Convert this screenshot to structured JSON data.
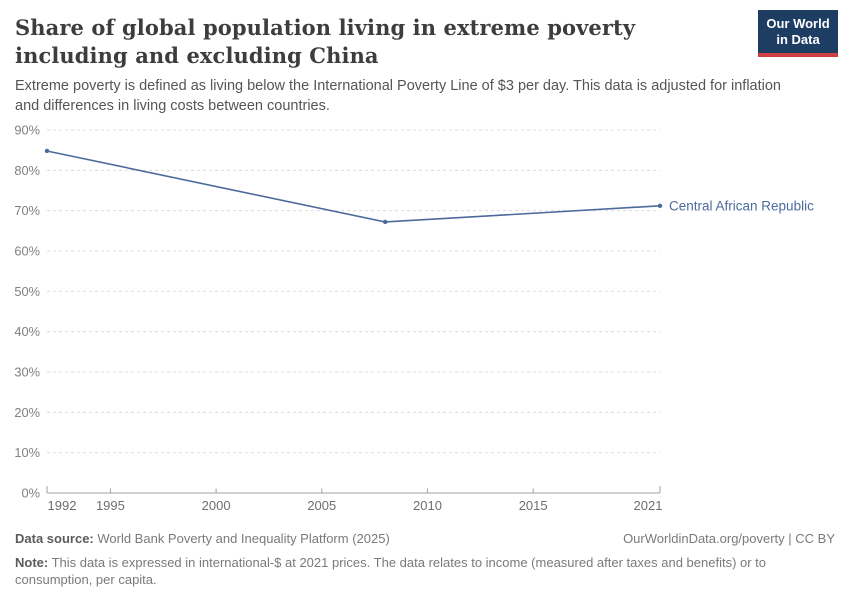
{
  "header": {
    "title": "Share of global population living in extreme poverty including and excluding China",
    "subtitle": "Extreme poverty is defined as living below the International Poverty Line of $3 per day. This data is adjusted for inflation and differences in living costs between countries.",
    "logo": {
      "line1": "Our World",
      "line2": "in Data",
      "bg_color": "#1d3d63",
      "accent_color": "#cf3e41"
    }
  },
  "chart_data": {
    "type": "line",
    "series": [
      {
        "name": "Central African Republic",
        "color": "#4c6a9c",
        "x": [
          1992,
          2008,
          2021
        ],
        "values": [
          84.8,
          67.2,
          71.2
        ]
      }
    ],
    "title": "Share of global population living in extreme poverty including and excluding China",
    "xlabel": "",
    "ylabel": "",
    "xlim": [
      1992,
      2021
    ],
    "ylim": [
      0,
      90
    ],
    "x_ticks": [
      1992,
      1995,
      2000,
      2005,
      2010,
      2015,
      2021
    ],
    "y_ticks": [
      0,
      10,
      20,
      30,
      40,
      50,
      60,
      70,
      80,
      90
    ],
    "y_tick_suffix": "%",
    "grid": "horizontal-dashed",
    "legend_position": "end-of-line-label",
    "colors": {
      "gridline": "#dcdcdc",
      "axis": "#a3a3a3",
      "y_tick_text": "#808080",
      "x_tick_text": "#6e6e6e"
    }
  },
  "footer": {
    "datasource_label": "Data source:",
    "datasource_value": " World Bank Poverty and Inequality Platform (2025)",
    "license": "OurWorldinData.org/poverty | CC BY",
    "note_label": "Note:",
    "note_value": " This data is expressed in international-$ at 2021 prices. The data relates to income (measured after taxes and benefits) or to consumption, per capita."
  }
}
